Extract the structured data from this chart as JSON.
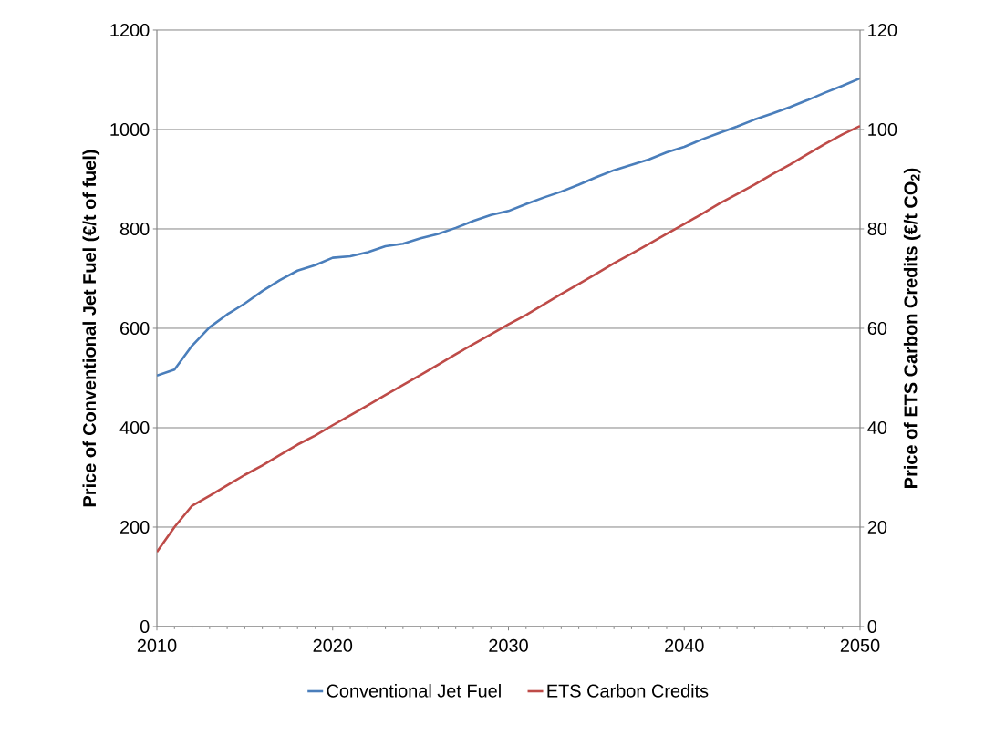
{
  "chart_data": {
    "type": "line",
    "xlabel": null,
    "ylabel": "Price of Conventional  Jet Fuel (€/t of fuel)",
    "y2label": "Price of ETS Carbon Credits (€/t CO$_{2}$)",
    "x": [
      2010,
      2011,
      2012,
      2013,
      2014,
      2015,
      2016,
      2017,
      2018,
      2019,
      2020,
      2021,
      2022,
      2023,
      2024,
      2025,
      2026,
      2027,
      2028,
      2029,
      2030,
      2031,
      2032,
      2033,
      2034,
      2035,
      2036,
      2037,
      2038,
      2039,
      2040,
      2041,
      2042,
      2043,
      2044,
      2045,
      2046,
      2047,
      2048,
      2049,
      2050
    ],
    "series": [
      {
        "name": "Conventional Jet Fuel",
        "color": "#4a7ebb",
        "values": [
          505,
          517,
          565,
          602,
          628,
          650,
          675,
          697,
          716,
          727,
          742,
          745,
          753,
          765,
          770,
          781,
          790,
          802,
          816,
          828,
          836,
          850,
          863,
          875,
          889,
          904,
          918,
          929,
          940,
          954,
          965,
          980,
          993,
          1006,
          1020,
          1032,
          1045,
          1059,
          1074,
          1088,
          1103
        ]
      },
      {
        "name": "ETS Carbon Credits",
        "color": "#be4b48",
        "axis": "y2",
        "values": [
          15,
          20,
          24.3,
          26.3,
          28.4,
          30.5,
          32.4,
          34.5,
          36.6,
          38.4,
          40.5,
          42.5,
          44.5,
          46.6,
          48.6,
          50.6,
          52.7,
          54.8,
          56.8,
          58.8,
          60.8,
          62.7,
          64.8,
          66.9,
          68.9,
          71.0,
          73.1,
          75.0,
          77.0,
          79.0,
          81.0,
          83.0,
          85.1,
          87.0,
          88.9,
          91.0,
          92.9,
          95.0,
          97.1,
          99.0,
          100.7
        ]
      }
    ],
    "xlim": [
      2010,
      2050
    ],
    "xticks": [
      2010,
      2020,
      2030,
      2040,
      2050
    ],
    "ylim": [
      0,
      1200
    ],
    "yticks": [
      0,
      200,
      400,
      600,
      800,
      1000,
      1200
    ],
    "y2lim": [
      0,
      120
    ],
    "y2ticks": [
      0,
      20,
      40,
      60,
      80,
      100,
      120
    ],
    "grid": "y",
    "legend": "bottom",
    "marker": "none",
    "line_style": "solid"
  }
}
